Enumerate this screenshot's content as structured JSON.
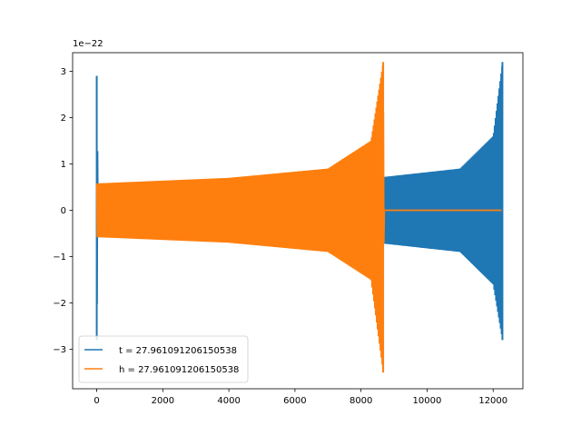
{
  "chart_data": {
    "type": "line",
    "title": "",
    "xlabel": "",
    "ylabel": "",
    "y_offset_text": "1e−22",
    "xlim": [
      -730,
      12900
    ],
    "ylim": [
      -3.85,
      3.4
    ],
    "xticks": [
      0,
      2000,
      4000,
      6000,
      8000,
      10000,
      12000
    ],
    "xtick_labels": [
      "0",
      "2000",
      "4000",
      "6000",
      "8000",
      "10000",
      "12000"
    ],
    "yticks": [
      -3,
      -2,
      -1,
      0,
      1,
      2,
      3
    ],
    "ytick_labels": [
      "−3",
      "−2",
      "−1",
      "0",
      "1",
      "2",
      "3"
    ],
    "grid": false,
    "legend": {
      "placement": "lower left"
    },
    "series": [
      {
        "name": "t = 27.961091206150538",
        "color": "#1f77b4",
        "description_points": [
          {
            "x": 0,
            "y_max": 2.9,
            "y_min": -2.8
          },
          {
            "x": 40,
            "y_max": 0.58,
            "y_min": -0.58
          },
          {
            "x": 4000,
            "y_max": 0.63,
            "y_min": -0.63
          },
          {
            "x": 8700,
            "y_max": 0.72,
            "y_min": -0.72
          },
          {
            "x": 11000,
            "y_max": 0.9,
            "y_min": -0.9
          },
          {
            "x": 12000,
            "y_max": 1.6,
            "y_min": -1.6
          },
          {
            "x": 12280,
            "y_max": 3.2,
            "y_min": -2.8
          }
        ]
      },
      {
        "name": "h = 27.961091206150538",
        "color": "#ff7f0e",
        "description_points": [
          {
            "x": 0,
            "y_max": 0.58,
            "y_min": -0.58
          },
          {
            "x": 4000,
            "y_max": 0.7,
            "y_min": -0.7
          },
          {
            "x": 7000,
            "y_max": 0.9,
            "y_min": -0.9
          },
          {
            "x": 8300,
            "y_max": 1.5,
            "y_min": -1.5
          },
          {
            "x": 8670,
            "y_max": 3.2,
            "y_min": -3.5
          },
          {
            "x": 8700,
            "y_max": 0,
            "y_min": 0
          },
          {
            "x": 12280,
            "y_max": 0,
            "y_min": 0
          }
        ]
      }
    ]
  }
}
